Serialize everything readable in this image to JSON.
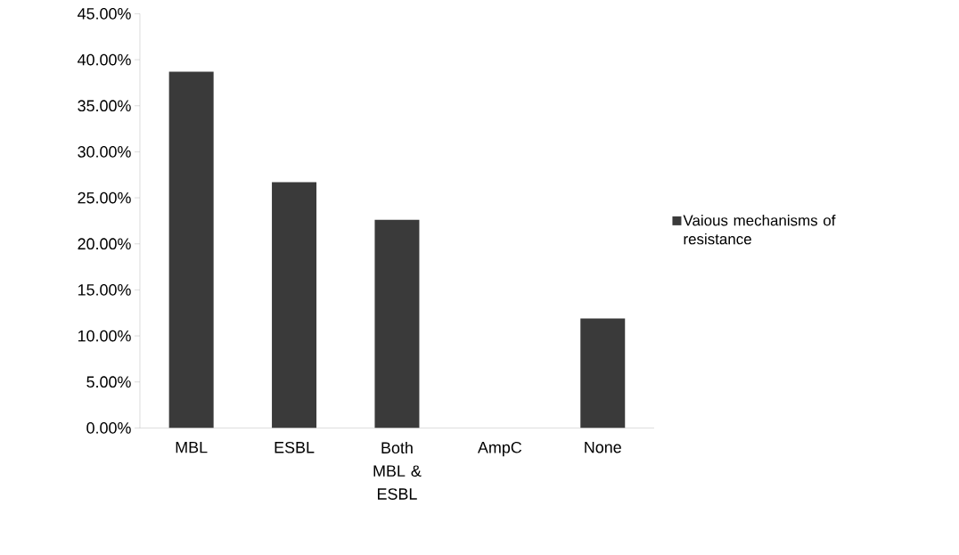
{
  "chart_data": {
    "type": "bar",
    "categories": [
      "MBL",
      "ESBL",
      "Both MBL & ESBL",
      "AmpC",
      "None"
    ],
    "series": [
      {
        "name": "Vaious mechanisms of resistance",
        "color": "#3a3a3a",
        "values": [
          38.7,
          26.7,
          22.6,
          0,
          11.9
        ]
      }
    ],
    "ylim": [
      0,
      45
    ],
    "yticks": [
      {
        "value": 0,
        "label": "0.00%"
      },
      {
        "value": 5,
        "label": "5.00%"
      },
      {
        "value": 10,
        "label": "10.00%"
      },
      {
        "value": 15,
        "label": "15.00%"
      },
      {
        "value": 20,
        "label": "20.00%"
      },
      {
        "value": 25,
        "label": "25.00%"
      },
      {
        "value": 30,
        "label": "30.00%"
      },
      {
        "value": 35,
        "label": "35.00%"
      },
      {
        "value": 40,
        "label": "40.00%"
      },
      {
        "value": 45,
        "label": "45.00%"
      }
    ],
    "grid": false,
    "legend": "right"
  }
}
